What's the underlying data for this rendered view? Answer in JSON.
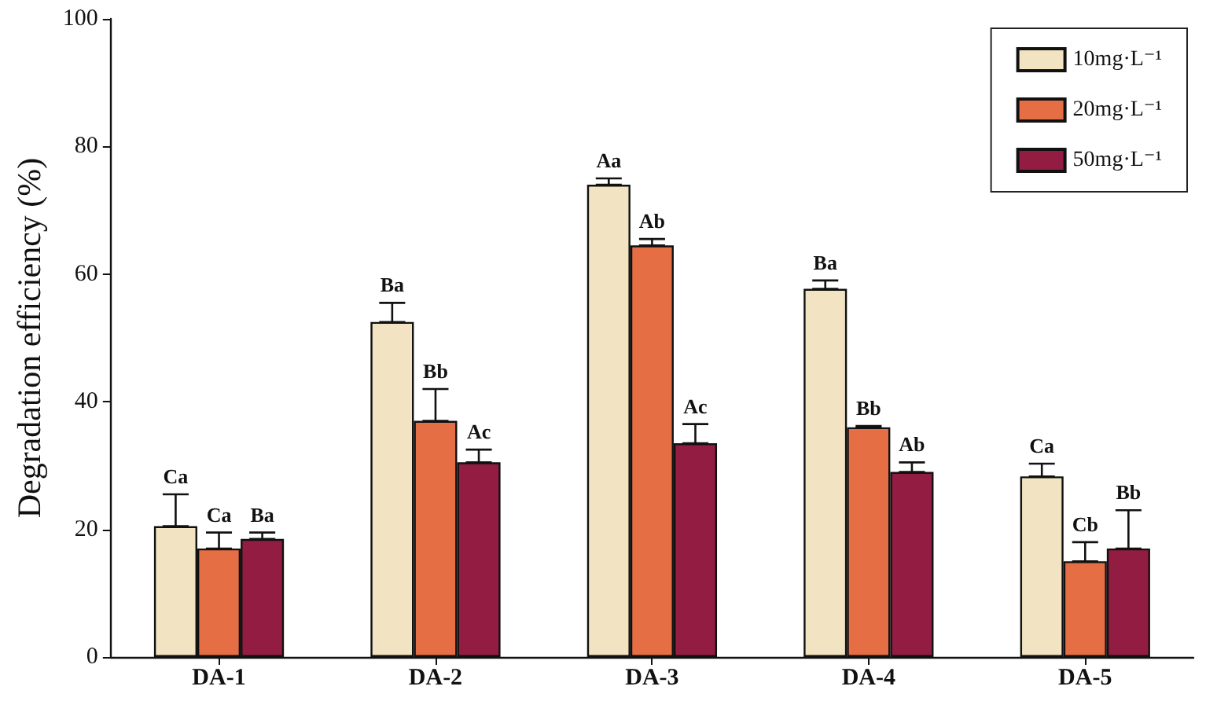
{
  "chart_data": {
    "type": "bar",
    "ylabel": "Degradation efficiency (%)",
    "categories": [
      "DA-1",
      "DA-2",
      "DA-3",
      "DA-4",
      "DA-5"
    ],
    "series": [
      {
        "name": "10mg·L⁻¹",
        "color": "#f2e4c2",
        "values": [
          20.5,
          52.5,
          74,
          57.7,
          28.3
        ],
        "errors": [
          [
            20.5,
            25.5
          ],
          [
            52.5,
            55.5
          ],
          [
            74,
            75
          ],
          [
            57.7,
            59
          ],
          [
            28.3,
            30.3
          ]
        ]
      },
      {
        "name": "20mg·L⁻¹",
        "color": "#e66e45",
        "values": [
          17,
          37,
          64.5,
          36,
          15
        ],
        "errors": [
          [
            17,
            19.5
          ],
          [
            37,
            42
          ],
          [
            64.5,
            65.5
          ],
          [
            36,
            36.2
          ],
          [
            15,
            18
          ]
        ]
      },
      {
        "name": "50mg·L⁻¹",
        "color": "#931d42",
        "values": [
          18.5,
          30.5,
          33.5,
          29,
          17
        ],
        "errors": [
          [
            18.5,
            19.5
          ],
          [
            30.5,
            32.5
          ],
          [
            33.5,
            36.5
          ],
          [
            29,
            30.5
          ],
          [
            17,
            23
          ]
        ]
      }
    ],
    "annotations": [
      "Ca",
      "Ca",
      "Ba",
      "Ba",
      "Bb",
      "Ac",
      "Aa",
      "Ab",
      "Ac",
      "Ba",
      "Bb",
      "Ab",
      "Ca",
      "Cb",
      "Bb"
    ],
    "ylim": [
      0,
      100
    ],
    "yticks": [
      0,
      20,
      40,
      60,
      80,
      100
    ],
    "grid": false,
    "legend": "top right"
  }
}
